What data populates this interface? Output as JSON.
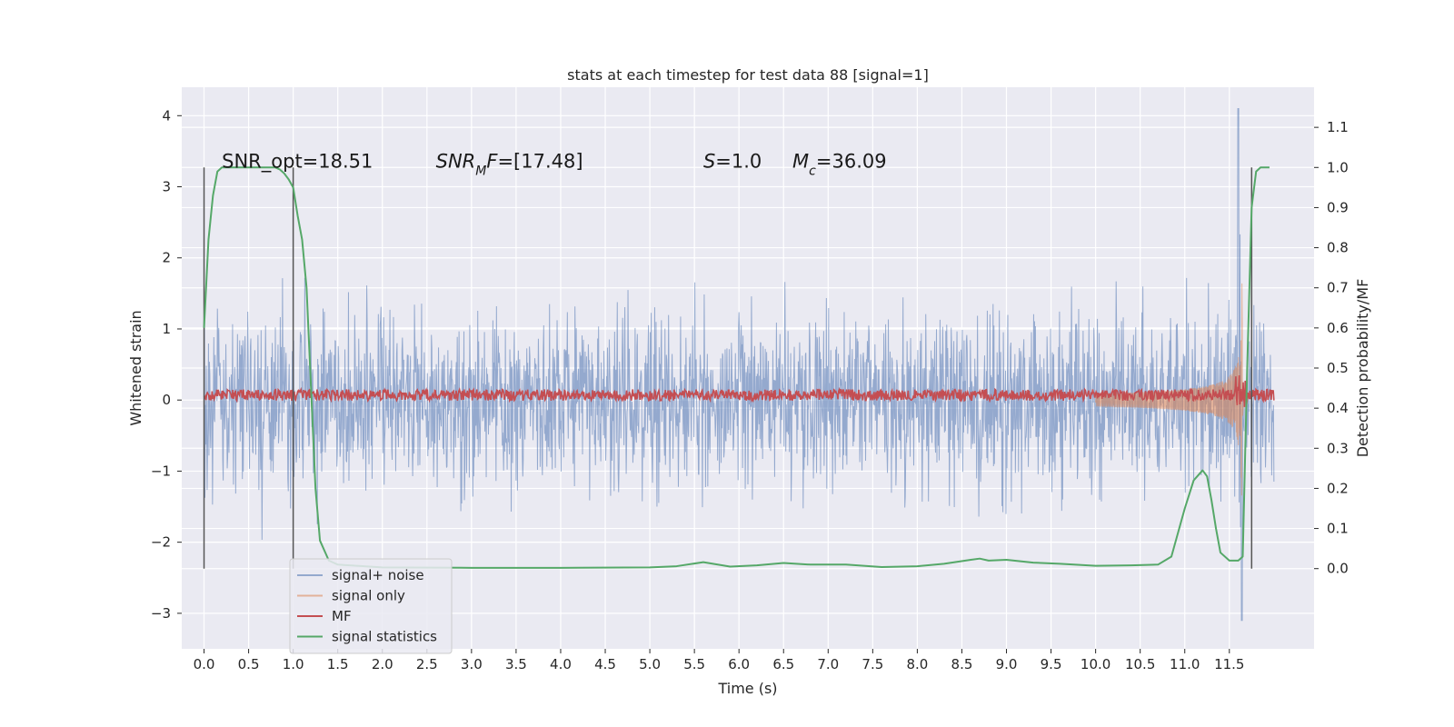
{
  "chart_data": {
    "type": "line",
    "title": "stats at each timestep for test data 88 [signal=1]",
    "xlabel": "Time (s)",
    "ylabel_left": "Whitened strain",
    "ylabel_right": "Detection probability/MF",
    "xlim": [
      -0.25,
      12.45
    ],
    "ylim_left": [
      -3.5,
      4.4
    ],
    "ylim_right": [
      -0.2,
      1.2
    ],
    "x_ticks": [
      0.0,
      0.5,
      1.0,
      1.5,
      2.0,
      2.5,
      3.0,
      3.5,
      4.0,
      4.5,
      5.0,
      5.5,
      6.0,
      6.5,
      7.0,
      7.5,
      8.0,
      8.5,
      9.0,
      9.5,
      10.0,
      10.5,
      11.0,
      11.5
    ],
    "x_tick_labels": [
      "0.0",
      "0.5",
      "1.0",
      "1.5",
      "2.0",
      "2.5",
      "3.0",
      "3.5",
      "4.0",
      "4.5",
      "5.0",
      "5.5",
      "6.0",
      "6.5",
      "7.0",
      "7.5",
      "8.0",
      "8.5",
      "9.0",
      "9.5",
      "10.0",
      "10.5",
      "11.0",
      "11.5"
    ],
    "y_left_ticks": [
      -3,
      -2,
      -1,
      0,
      1,
      2,
      3,
      4
    ],
    "y_left_tick_labels": [
      "−3",
      "−2",
      "−1",
      "0",
      "1",
      "2",
      "3",
      "4"
    ],
    "y_right_ticks": [
      0.0,
      0.1,
      0.2,
      0.3,
      0.4,
      0.5,
      0.6,
      0.7,
      0.8,
      0.9,
      1.0,
      1.1
    ],
    "y_right_tick_labels": [
      "0.0",
      "0.1",
      "0.2",
      "0.3",
      "0.4",
      "0.5",
      "0.6",
      "0.7",
      "0.8",
      "0.9",
      "1.0",
      "1.1"
    ],
    "grid": true,
    "legend_position": "lower-left",
    "series": [
      {
        "name": "signal+ noise",
        "color": "#4c72b0",
        "axis": "left",
        "kind": "noise",
        "x_range": [
          0.0,
          12.0
        ],
        "amplitude_sigma": 0.6,
        "peaks": [
          {
            "x": 11.6,
            "y": 4.1
          },
          {
            "x": 11.64,
            "y": -3.1
          }
        ]
      },
      {
        "name": "signal only",
        "color": "#dd8452",
        "axis": "left",
        "kind": "chirp",
        "x_range": [
          10.0,
          11.7
        ],
        "peak_amplitude": 3.0,
        "merger_x": 11.65
      },
      {
        "name": "MF",
        "color": "#c44e52",
        "axis": "left",
        "kind": "band",
        "x_range": [
          0.0,
          12.0
        ],
        "level": 0.07,
        "spread": 0.08
      },
      {
        "name": "signal statistics",
        "color": "#55a868",
        "axis": "right",
        "x": [
          0.0,
          0.05,
          0.1,
          0.15,
          0.2,
          0.3,
          0.5,
          0.7,
          0.8,
          0.85,
          0.9,
          0.95,
          1.0,
          1.05,
          1.1,
          1.15,
          1.2,
          1.25,
          1.3,
          1.4,
          1.5,
          2.0,
          3.0,
          4.0,
          5.0,
          5.3,
          5.6,
          5.9,
          6.2,
          6.5,
          6.8,
          7.2,
          7.6,
          8.0,
          8.3,
          8.6,
          8.7,
          8.8,
          9.0,
          9.3,
          9.6,
          10.0,
          10.4,
          10.7,
          10.85,
          11.0,
          11.1,
          11.2,
          11.25,
          11.3,
          11.35,
          11.4,
          11.5,
          11.6,
          11.65,
          11.7,
          11.75,
          11.8,
          11.85,
          11.9,
          11.95
        ],
        "y": [
          0.6,
          0.82,
          0.93,
          0.99,
          1.0,
          1.0,
          1.0,
          1.0,
          1.0,
          0.995,
          0.985,
          0.97,
          0.95,
          0.88,
          0.82,
          0.7,
          0.45,
          0.2,
          0.07,
          0.02,
          0.01,
          0.003,
          0.002,
          0.002,
          0.003,
          0.006,
          0.016,
          0.005,
          0.008,
          0.014,
          0.01,
          0.01,
          0.004,
          0.006,
          0.012,
          0.022,
          0.025,
          0.02,
          0.022,
          0.015,
          0.012,
          0.007,
          0.008,
          0.01,
          0.03,
          0.15,
          0.22,
          0.245,
          0.23,
          0.17,
          0.1,
          0.04,
          0.02,
          0.02,
          0.03,
          0.5,
          0.9,
          0.99,
          1.0,
          1.0,
          1.0
        ]
      }
    ],
    "vertical_lines": [
      {
        "x": 0.0,
        "y_range": [
          0.0,
          1.0
        ]
      },
      {
        "x": 1.0,
        "y_range": [
          0.0,
          1.0
        ]
      },
      {
        "x": 11.75,
        "y_range": [
          0.0,
          1.0
        ]
      }
    ],
    "annotations": [
      {
        "x": 0.2,
        "y_right": 1.0,
        "html": "SNR_opt=18.51"
      },
      {
        "x": 2.6,
        "y_right": 1.0,
        "html": "<tspan font-style='italic'>SNR</tspan><tspan font-style='italic' baseline-shift='sub' font-size='14'>M</tspan><tspan font-style='italic'>F</tspan>=[17.48]"
      },
      {
        "x": 5.6,
        "y_right": 1.0,
        "html": "<tspan font-style='italic'>S</tspan>=1.0"
      },
      {
        "x": 6.6,
        "y_right": 1.0,
        "html": "<tspan font-style='italic'>M</tspan><tspan font-style='italic' baseline-shift='sub' font-size='14'>c</tspan>=36.09"
      }
    ],
    "legend": [
      "signal+ noise",
      "signal only",
      "MF",
      "signal statistics"
    ]
  }
}
